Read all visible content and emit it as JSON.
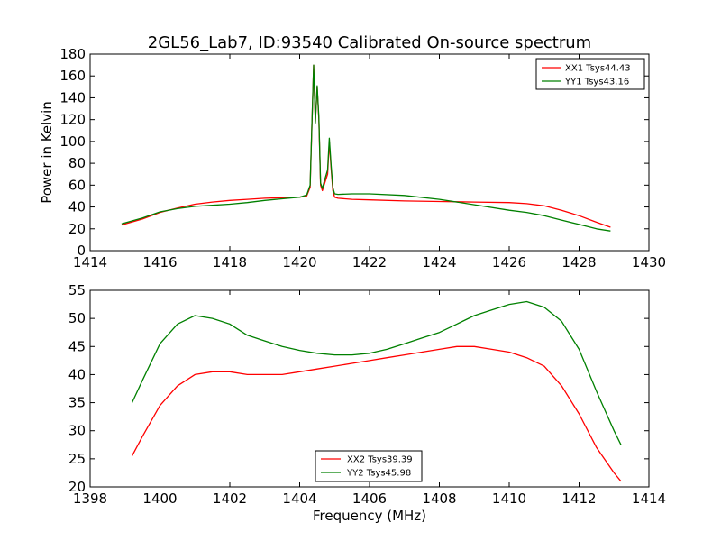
{
  "title": "2GL56_Lab7, ID:93540 Calibrated On-source spectrum",
  "colors": {
    "xx": "#ff0000",
    "yy": "#008000",
    "axes": "#000000"
  },
  "chart_data": [
    {
      "type": "line",
      "title": "2GL56_Lab7, ID:93540 Calibrated On-source spectrum",
      "xlabel": "",
      "ylabel": "Power in Kelvin",
      "xlim": [
        1414,
        1430
      ],
      "ylim": [
        0,
        180
      ],
      "xticks": [
        "1414",
        "1416",
        "1418",
        "1420",
        "1422",
        "1424",
        "1426",
        "1428",
        "1430"
      ],
      "yticks": [
        "0",
        "20",
        "40",
        "60",
        "80",
        "100",
        "120",
        "140",
        "160",
        "180"
      ],
      "grid": false,
      "legend_position": "top-right",
      "series": [
        {
          "name": "XX1 Tsys44.43",
          "color": "#ff0000",
          "x": [
            1414.9,
            1415.5,
            1416.0,
            1416.5,
            1417.0,
            1417.5,
            1418.0,
            1418.5,
            1419.0,
            1419.5,
            1420.0,
            1420.2,
            1420.3,
            1420.4,
            1420.45,
            1420.5,
            1420.55,
            1420.6,
            1420.65,
            1420.7,
            1420.8,
            1420.85,
            1420.9,
            1420.95,
            1421.0,
            1421.1,
            1421.5,
            1422.0,
            1423.0,
            1424.0,
            1425.0,
            1426.0,
            1426.5,
            1427.0,
            1427.5,
            1428.0,
            1428.5,
            1428.9
          ],
          "y": [
            23.5,
            29,
            35,
            39,
            42.5,
            44.5,
            46,
            47,
            48,
            48.5,
            49,
            50,
            58,
            170,
            118,
            150,
            120,
            60,
            55,
            60,
            70,
            100,
            75,
            55,
            49,
            48,
            47,
            46.5,
            45.5,
            45,
            44.5,
            44,
            43,
            41,
            37,
            32,
            26,
            21.5
          ]
        },
        {
          "name": "YY1 Tsys43.16",
          "color": "#008000",
          "x": [
            1414.9,
            1415.5,
            1416.0,
            1416.5,
            1417.0,
            1417.5,
            1418.0,
            1418.5,
            1419.0,
            1419.5,
            1420.0,
            1420.2,
            1420.3,
            1420.4,
            1420.45,
            1420.5,
            1420.55,
            1420.6,
            1420.65,
            1420.7,
            1420.8,
            1420.85,
            1420.9,
            1420.95,
            1421.0,
            1421.1,
            1421.5,
            1422.0,
            1423.0,
            1424.0,
            1425.0,
            1426.0,
            1426.5,
            1427.0,
            1427.5,
            1428.0,
            1428.5,
            1428.9
          ],
          "y": [
            24.5,
            30,
            35.5,
            38.5,
            40.5,
            41.5,
            42.5,
            44,
            46,
            47.5,
            49,
            51,
            60,
            170,
            117,
            151,
            122,
            62,
            57,
            63,
            74,
            103,
            78,
            58,
            52,
            51.5,
            52,
            52,
            50.5,
            47,
            42,
            37,
            35,
            32,
            28,
            24,
            20,
            18
          ]
        }
      ]
    },
    {
      "type": "line",
      "title": "",
      "xlabel": "Frequency (MHz)",
      "ylabel": "",
      "xlim": [
        1398,
        1414
      ],
      "ylim": [
        20,
        55
      ],
      "xticks": [
        "1398",
        "1400",
        "1402",
        "1404",
        "1406",
        "1408",
        "1410",
        "1412",
        "1414"
      ],
      "yticks": [
        "20",
        "25",
        "30",
        "35",
        "40",
        "45",
        "50",
        "55"
      ],
      "grid": false,
      "legend_position": "bottom-center",
      "series": [
        {
          "name": "XX2 Tsys39.39",
          "color": "#ff0000",
          "x": [
            1399.2,
            1399.5,
            1400.0,
            1400.5,
            1401.0,
            1401.5,
            1402.0,
            1402.5,
            1403.0,
            1403.5,
            1404.0,
            1404.5,
            1405.0,
            1405.5,
            1406.0,
            1406.5,
            1407.0,
            1407.5,
            1408.0,
            1408.5,
            1409.0,
            1409.5,
            1410.0,
            1410.5,
            1411.0,
            1411.5,
            1412.0,
            1412.5,
            1413.0,
            1413.2
          ],
          "y": [
            25.5,
            29,
            34.5,
            38,
            40,
            40.5,
            40.5,
            40,
            40,
            40,
            40.5,
            41,
            41.5,
            42,
            42.5,
            43,
            43.5,
            44,
            44.5,
            45,
            45,
            44.5,
            44,
            43,
            41.5,
            38,
            33,
            27,
            22.5,
            21
          ]
        },
        {
          "name": "YY2 Tsys45.98",
          "color": "#008000",
          "x": [
            1399.2,
            1399.5,
            1400.0,
            1400.5,
            1401.0,
            1401.5,
            1402.0,
            1402.5,
            1403.0,
            1403.5,
            1404.0,
            1404.5,
            1405.0,
            1405.5,
            1406.0,
            1406.5,
            1407.0,
            1407.5,
            1408.0,
            1408.5,
            1409.0,
            1409.5,
            1410.0,
            1410.5,
            1411.0,
            1411.5,
            1412.0,
            1412.5,
            1413.0,
            1413.2
          ],
          "y": [
            35,
            39,
            45.5,
            49,
            50.5,
            50,
            49,
            47,
            46,
            45,
            44.3,
            43.8,
            43.5,
            43.5,
            43.8,
            44.5,
            45.5,
            46.5,
            47.5,
            49,
            50.5,
            51.5,
            52.5,
            53,
            52,
            49.5,
            44.5,
            37,
            30,
            27.5
          ]
        }
      ]
    }
  ]
}
